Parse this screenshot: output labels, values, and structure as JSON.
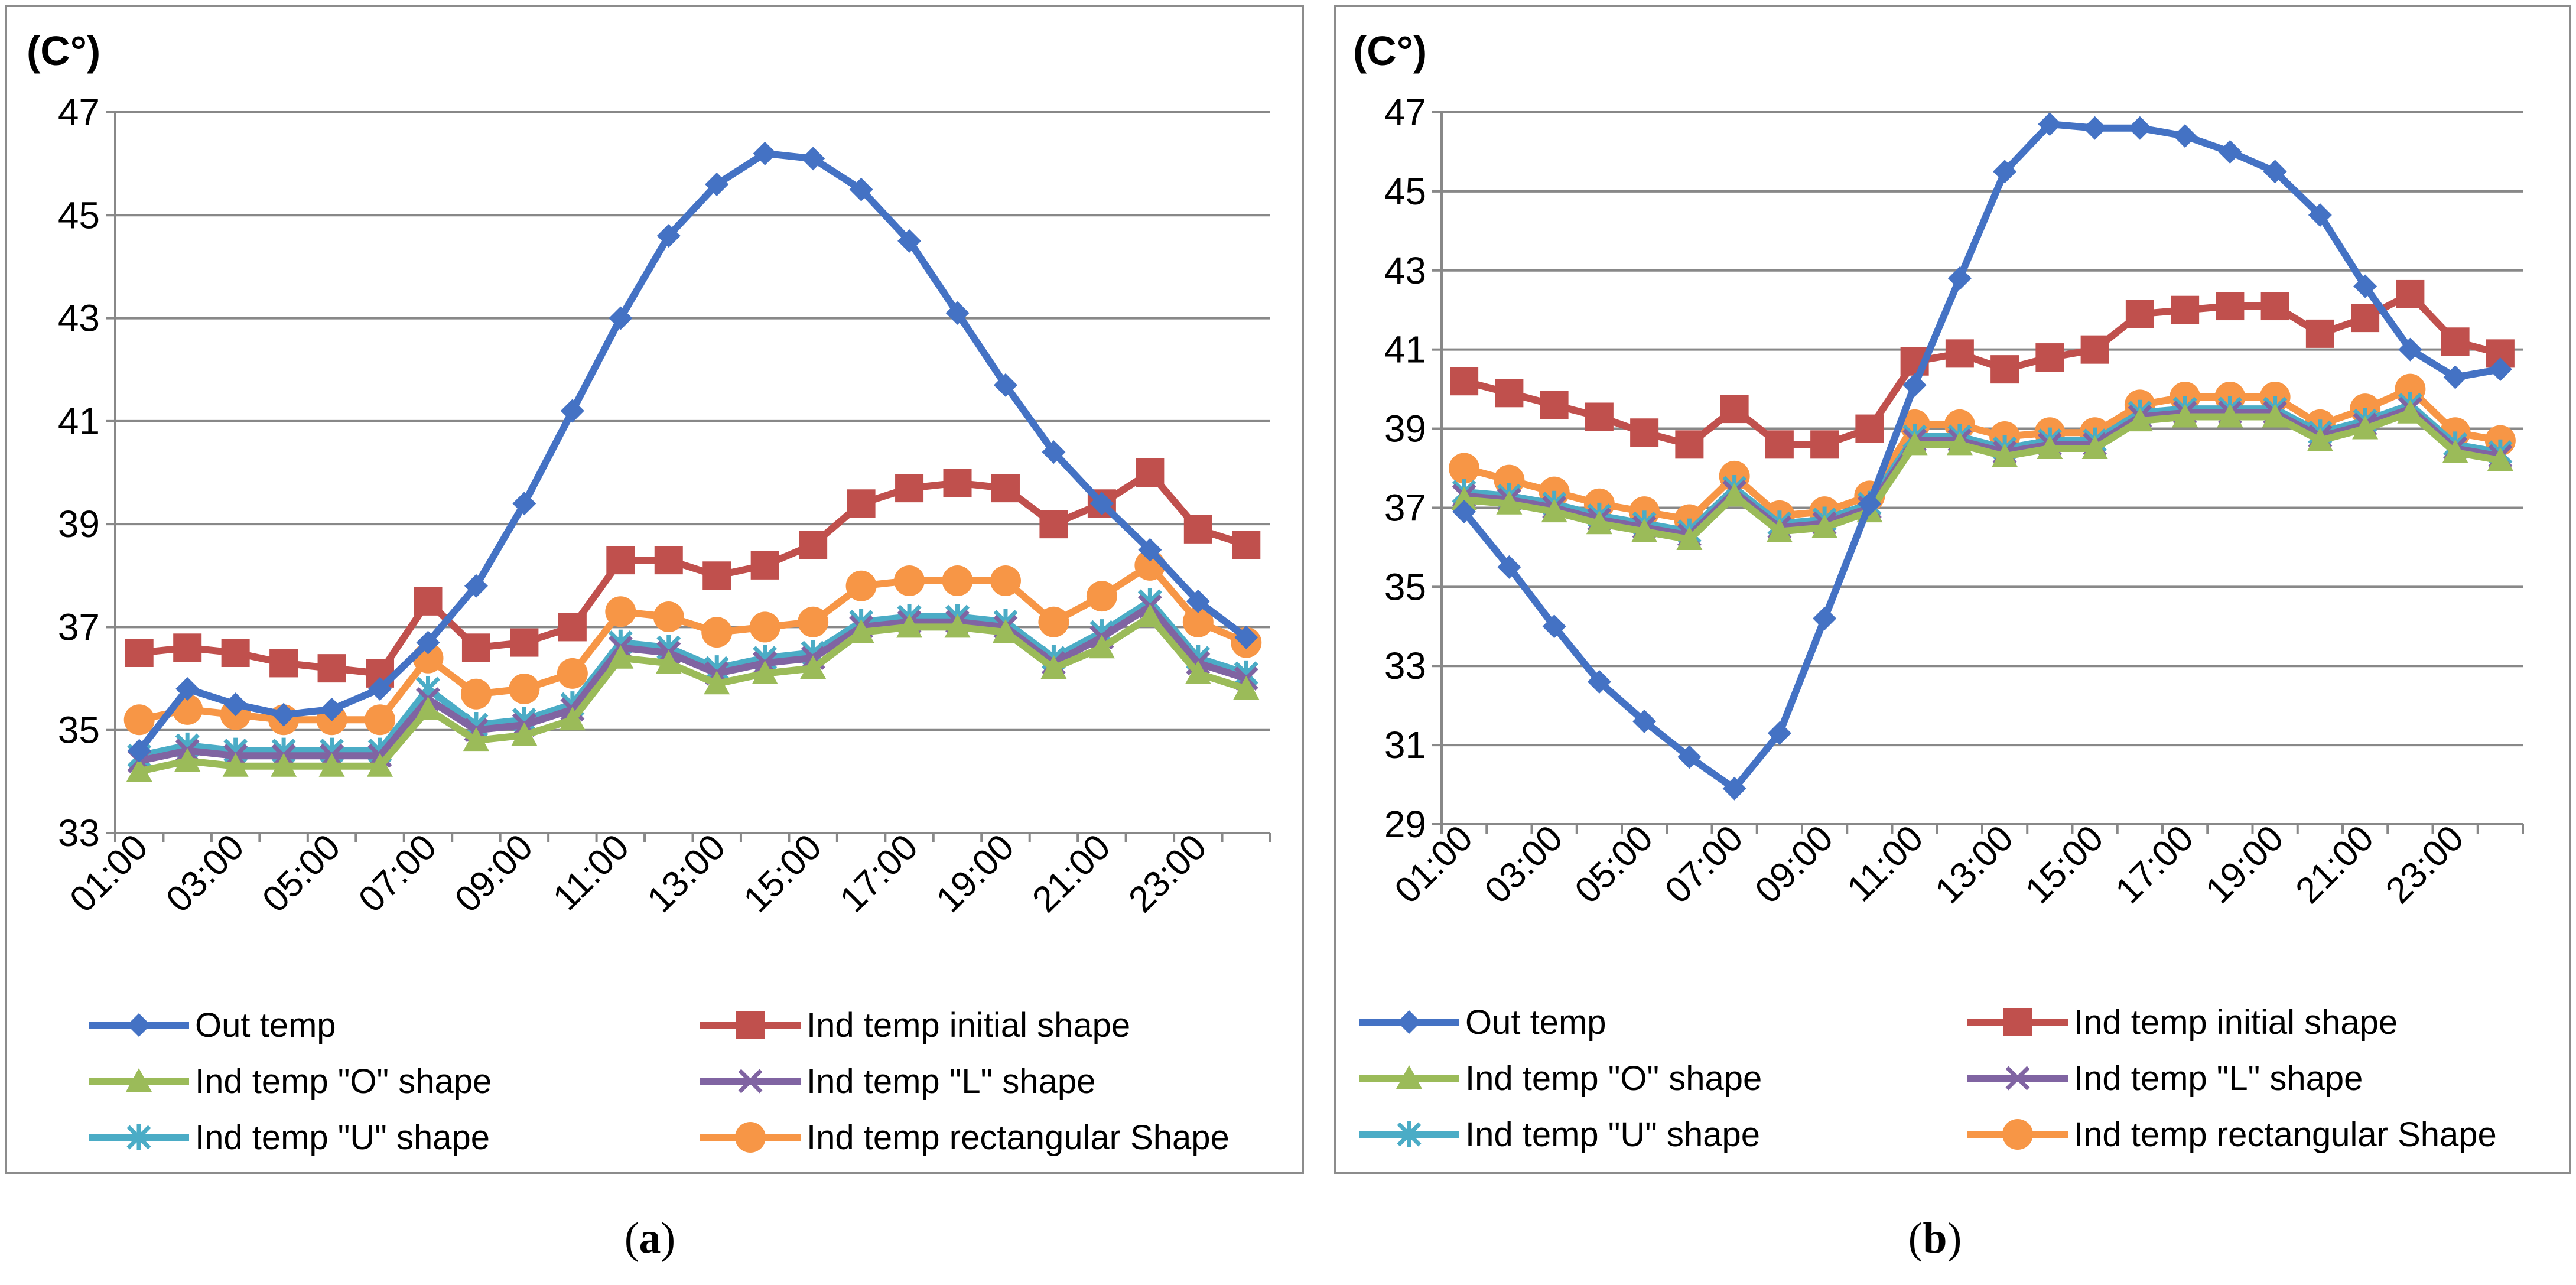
{
  "chart_data": [
    {
      "type": "line",
      "panel": "a",
      "caption_letter": "a",
      "ylabel": "(C°)",
      "ylim": [
        33,
        47
      ],
      "yticks": [
        "47",
        "45",
        "43",
        "41",
        "39",
        "37",
        "35",
        "33"
      ],
      "xticks": [
        "01:00",
        "03:00",
        "05:00",
        "07:00",
        "09:00",
        "11:00",
        "13:00",
        "15:00",
        "17:00",
        "19:00",
        "21:00",
        "23:00"
      ],
      "x": [
        "01:00",
        "02:00",
        "03:00",
        "04:00",
        "05:00",
        "06:00",
        "07:00",
        "08:00",
        "09:00",
        "10:00",
        "11:00",
        "12:00",
        "13:00",
        "14:00",
        "15:00",
        "16:00",
        "17:00",
        "18:00",
        "19:00",
        "20:00",
        "21:00",
        "22:00",
        "23:00",
        "24:00"
      ],
      "series": [
        {
          "name": "Out temp",
          "color": "#4472C4",
          "marker": "diamond",
          "values": [
            34.6,
            35.8,
            35.5,
            35.3,
            35.4,
            35.8,
            36.7,
            37.8,
            39.4,
            41.2,
            43.0,
            44.6,
            45.6,
            46.2,
            46.1,
            45.5,
            44.5,
            43.1,
            41.7,
            40.4,
            39.4,
            38.5,
            37.5,
            36.8
          ]
        },
        {
          "name": "Ind temp initial shape",
          "color": "#C0504D",
          "marker": "square",
          "values": [
            36.5,
            36.6,
            36.5,
            36.3,
            36.2,
            36.1,
            37.5,
            36.6,
            36.7,
            37.0,
            38.3,
            38.3,
            38.0,
            38.2,
            38.6,
            39.4,
            39.7,
            39.8,
            39.7,
            39.0,
            39.4,
            40.0,
            38.9,
            38.6
          ]
        },
        {
          "name": "Ind temp \"O\" shape",
          "color": "#9BBB59",
          "marker": "triangle",
          "values": [
            34.2,
            34.4,
            34.3,
            34.3,
            34.3,
            34.3,
            35.4,
            34.8,
            34.9,
            35.2,
            36.4,
            36.3,
            35.9,
            36.1,
            36.2,
            36.9,
            37.0,
            37.0,
            36.9,
            36.2,
            36.6,
            37.2,
            36.1,
            35.8
          ]
        },
        {
          "name": "Ind temp \"L\" shape",
          "color": "#8064A2",
          "marker": "x",
          "values": [
            34.4,
            34.6,
            34.5,
            34.5,
            34.5,
            34.5,
            35.6,
            35.0,
            35.1,
            35.4,
            36.6,
            36.5,
            36.1,
            36.3,
            36.4,
            37.0,
            37.1,
            37.1,
            37.0,
            36.3,
            36.8,
            37.4,
            36.3,
            36.0
          ]
        },
        {
          "name": "Ind temp \"U\" shape",
          "color": "#4BACC6",
          "marker": "star",
          "values": [
            34.5,
            34.7,
            34.6,
            34.6,
            34.6,
            34.6,
            35.8,
            35.1,
            35.2,
            35.5,
            36.7,
            36.6,
            36.2,
            36.4,
            36.5,
            37.1,
            37.2,
            37.2,
            37.1,
            36.4,
            36.9,
            37.5,
            36.4,
            36.1
          ]
        },
        {
          "name": "Ind temp rectangular Shape",
          "color": "#F79646",
          "marker": "circle",
          "values": [
            35.2,
            35.4,
            35.3,
            35.2,
            35.2,
            35.2,
            36.4,
            35.7,
            35.8,
            36.1,
            37.3,
            37.2,
            36.9,
            37.0,
            37.1,
            37.8,
            37.9,
            37.9,
            37.9,
            37.1,
            37.6,
            38.2,
            37.1,
            36.7
          ]
        }
      ]
    },
    {
      "type": "line",
      "panel": "b",
      "caption_letter": "b",
      "ylabel": "(C°)",
      "ylim": [
        29,
        47
      ],
      "yticks": [
        "47",
        "45",
        "43",
        "41",
        "39",
        "37",
        "35",
        "33",
        "31",
        "29"
      ],
      "xticks": [
        "01:00",
        "03:00",
        "05:00",
        "07:00",
        "09:00",
        "11:00",
        "13:00",
        "15:00",
        "17:00",
        "19:00",
        "21:00",
        "23:00"
      ],
      "x": [
        "01:00",
        "02:00",
        "03:00",
        "04:00",
        "05:00",
        "06:00",
        "07:00",
        "08:00",
        "09:00",
        "10:00",
        "11:00",
        "12:00",
        "13:00",
        "14:00",
        "15:00",
        "16:00",
        "17:00",
        "18:00",
        "19:00",
        "20:00",
        "21:00",
        "22:00",
        "23:00",
        "24:00"
      ],
      "series": [
        {
          "name": "Out temp",
          "color": "#4472C4",
          "marker": "diamond",
          "values": [
            36.9,
            35.5,
            34.0,
            32.6,
            31.6,
            30.7,
            29.9,
            31.3,
            34.2,
            37.1,
            40.1,
            42.8,
            45.5,
            46.7,
            46.6,
            46.6,
            46.4,
            46.0,
            45.5,
            44.4,
            42.6,
            41.0,
            40.3,
            40.5
          ]
        },
        {
          "name": "Ind temp initial shape",
          "color": "#C0504D",
          "marker": "square",
          "values": [
            40.2,
            39.9,
            39.6,
            39.3,
            38.9,
            38.6,
            39.5,
            38.6,
            38.6,
            39.0,
            40.7,
            40.9,
            40.5,
            40.8,
            41.0,
            41.9,
            42.0,
            42.1,
            42.1,
            41.4,
            41.8,
            42.4,
            41.2,
            40.9
          ]
        },
        {
          "name": "Ind temp \"O\" shape",
          "color": "#9BBB59",
          "marker": "triangle",
          "values": [
            37.2,
            37.1,
            36.9,
            36.6,
            36.4,
            36.2,
            37.3,
            36.4,
            36.5,
            36.9,
            38.6,
            38.6,
            38.3,
            38.5,
            38.5,
            39.2,
            39.3,
            39.3,
            39.3,
            38.7,
            39.0,
            39.4,
            38.4,
            38.2
          ]
        },
        {
          "name": "Ind temp \"L\" shape",
          "color": "#8064A2",
          "marker": "x",
          "values": [
            37.3,
            37.2,
            37.0,
            36.7,
            36.5,
            36.3,
            37.4,
            36.5,
            36.6,
            37.0,
            38.7,
            38.7,
            38.4,
            38.6,
            38.6,
            39.3,
            39.4,
            39.4,
            39.4,
            38.8,
            39.1,
            39.5,
            38.5,
            38.3
          ]
        },
        {
          "name": "Ind temp \"U\" shape",
          "color": "#4BACC6",
          "marker": "star",
          "values": [
            37.4,
            37.3,
            37.1,
            36.8,
            36.6,
            36.4,
            37.5,
            36.6,
            36.7,
            37.1,
            38.8,
            38.8,
            38.5,
            38.7,
            38.7,
            39.4,
            39.5,
            39.5,
            39.5,
            38.9,
            39.2,
            39.6,
            38.6,
            38.4
          ]
        },
        {
          "name": "Ind temp rectangular Shape",
          "color": "#F79646",
          "marker": "circle",
          "values": [
            38.0,
            37.7,
            37.4,
            37.1,
            36.9,
            36.7,
            37.8,
            36.8,
            36.9,
            37.3,
            39.1,
            39.1,
            38.8,
            38.9,
            38.9,
            39.6,
            39.8,
            39.8,
            39.8,
            39.1,
            39.5,
            40.0,
            38.9,
            38.7
          ]
        }
      ]
    }
  ]
}
